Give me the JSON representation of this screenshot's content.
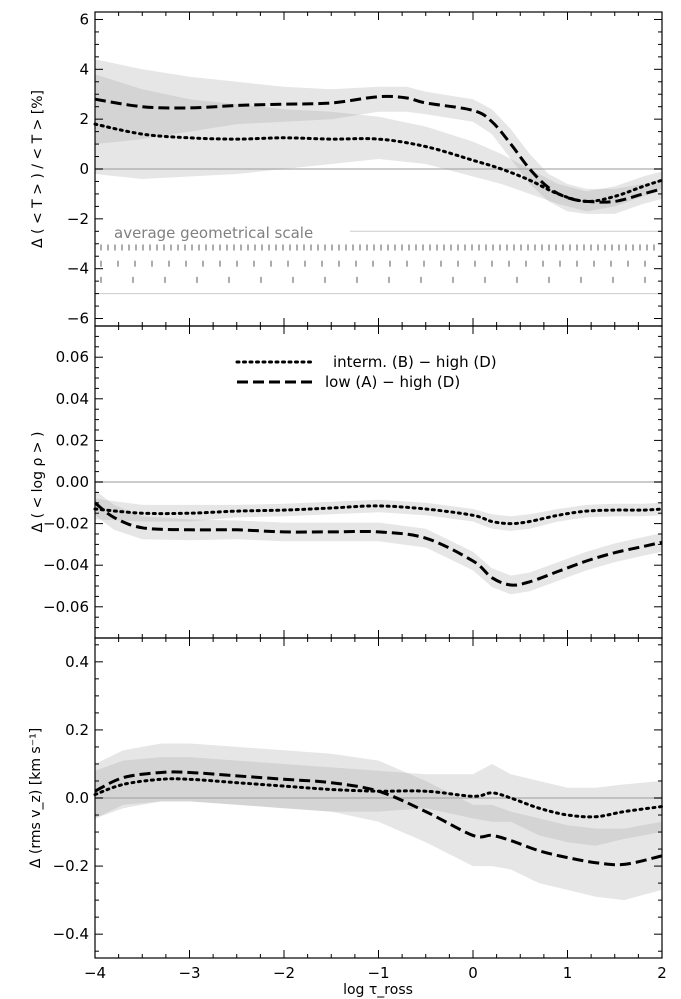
{
  "chart_data": [
    {
      "type": "line",
      "panel": "top",
      "ylabel": "Δ ( < T > ) / < T > [%]",
      "xlim": [
        -4,
        2
      ],
      "ylim": [
        -6.3,
        6.3
      ],
      "yticks": [
        "−6",
        "−4",
        "−2",
        "0",
        "2",
        "4",
        "6"
      ],
      "ytick_values": [
        -6,
        -4,
        -2,
        0,
        2,
        4,
        6
      ],
      "annotation": "average geometrical scale",
      "series": [
        {
          "style": "dotted",
          "x": [
            -4.0,
            -3.5,
            -3.0,
            -2.5,
            -2.0,
            -1.5,
            -1.0,
            -0.5,
            0.0,
            0.3,
            0.6,
            0.9,
            1.2,
            1.5,
            1.8,
            2.0
          ],
          "y": [
            1.8,
            1.4,
            1.25,
            1.2,
            1.25,
            1.2,
            1.2,
            0.9,
            0.35,
            0.0,
            -0.45,
            -1.0,
            -1.3,
            -1.1,
            -0.7,
            -0.45
          ],
          "band_upper": [
            3.8,
            3.2,
            2.8,
            2.6,
            2.4,
            2.3,
            2.1,
            1.7,
            1.1,
            0.6,
            0.0,
            -0.6,
            -0.9,
            -0.7,
            -0.3,
            -0.1
          ],
          "band_lower": [
            -0.2,
            -0.4,
            -0.3,
            -0.2,
            0.0,
            0.2,
            0.4,
            0.2,
            -0.3,
            -0.6,
            -1.0,
            -1.4,
            -1.7,
            -1.5,
            -1.1,
            -0.8
          ]
        },
        {
          "style": "dashed",
          "x": [
            -4.0,
            -3.5,
            -3.0,
            -2.5,
            -2.0,
            -1.5,
            -1.0,
            -0.7,
            -0.5,
            0.0,
            0.2,
            0.4,
            0.6,
            0.8,
            1.0,
            1.2,
            1.5,
            1.8,
            2.0
          ],
          "y": [
            2.8,
            2.5,
            2.45,
            2.55,
            2.6,
            2.65,
            2.9,
            2.85,
            2.65,
            2.35,
            1.9,
            1.0,
            0.0,
            -0.75,
            -1.15,
            -1.3,
            -1.3,
            -1.0,
            -0.8
          ],
          "band_upper": [
            4.4,
            4.0,
            3.7,
            3.5,
            3.3,
            3.2,
            3.3,
            3.3,
            3.1,
            2.8,
            2.4,
            1.6,
            0.6,
            -0.2,
            -0.6,
            -0.8,
            -0.8,
            -0.6,
            -0.4
          ],
          "band_lower": [
            1.0,
            1.2,
            1.5,
            1.8,
            1.9,
            2.0,
            2.3,
            2.3,
            2.2,
            1.9,
            1.4,
            0.4,
            -0.6,
            -1.3,
            -1.7,
            -1.8,
            -1.8,
            -1.4,
            -1.2
          ]
        }
      ]
    },
    {
      "type": "line",
      "panel": "middle",
      "ylabel": "Δ ( < log ρ > )",
      "xlim": [
        -4,
        2
      ],
      "ylim": [
        -0.075,
        0.075
      ],
      "yticks": [
        "−0.06",
        "−0.04",
        "−0.02",
        "0.00",
        "0.02",
        "0.04",
        "0.06"
      ],
      "ytick_values": [
        -0.06,
        -0.04,
        -0.02,
        0.0,
        0.02,
        0.04,
        0.06
      ],
      "legend": [
        "interm. (B) − high (D)",
        "low (A) − high (D)"
      ],
      "legend_position": "upper-center",
      "series": [
        {
          "name": "interm. (B) − high (D)",
          "style": "dotted",
          "x": [
            -4.0,
            -3.5,
            -3.0,
            -2.5,
            -2.0,
            -1.5,
            -1.0,
            -0.5,
            0.0,
            0.2,
            0.4,
            0.6,
            0.9,
            1.2,
            1.5,
            1.8,
            2.0
          ],
          "y": [
            -0.013,
            -0.015,
            -0.015,
            -0.014,
            -0.0135,
            -0.0125,
            -0.0115,
            -0.013,
            -0.016,
            -0.019,
            -0.02,
            -0.019,
            -0.016,
            -0.014,
            -0.0135,
            -0.0135,
            -0.013
          ],
          "band_upper": [
            -0.008,
            -0.011,
            -0.011,
            -0.011,
            -0.0105,
            -0.0095,
            -0.0085,
            -0.01,
            -0.013,
            -0.0155,
            -0.0165,
            -0.0155,
            -0.013,
            -0.011,
            -0.0105,
            -0.0105,
            -0.01
          ],
          "band_lower": [
            -0.018,
            -0.019,
            -0.019,
            -0.017,
            -0.0165,
            -0.0155,
            -0.0145,
            -0.016,
            -0.019,
            -0.0225,
            -0.0235,
            -0.0225,
            -0.019,
            -0.017,
            -0.0165,
            -0.0165,
            -0.016
          ]
        },
        {
          "name": "low (A) − high (D)",
          "style": "dashed",
          "x": [
            -4.0,
            -3.8,
            -3.5,
            -3.0,
            -2.5,
            -2.0,
            -1.5,
            -1.0,
            -0.5,
            0.0,
            0.2,
            0.4,
            0.6,
            0.9,
            1.2,
            1.5,
            1.8,
            2.0
          ],
          "y": [
            -0.01,
            -0.017,
            -0.022,
            -0.023,
            -0.023,
            -0.024,
            -0.024,
            -0.024,
            -0.027,
            -0.038,
            -0.046,
            -0.0495,
            -0.048,
            -0.043,
            -0.038,
            -0.034,
            -0.031,
            -0.029
          ],
          "band_upper": [
            -0.004,
            -0.011,
            -0.0165,
            -0.018,
            -0.0185,
            -0.0195,
            -0.0195,
            -0.0195,
            -0.0225,
            -0.0335,
            -0.0415,
            -0.045,
            -0.0435,
            -0.0385,
            -0.0335,
            -0.0295,
            -0.0265,
            -0.0245
          ],
          "band_lower": [
            -0.016,
            -0.023,
            -0.0275,
            -0.028,
            -0.0275,
            -0.0285,
            -0.0285,
            -0.0285,
            -0.0315,
            -0.0425,
            -0.0505,
            -0.054,
            -0.0525,
            -0.0475,
            -0.0425,
            -0.0385,
            -0.0355,
            -0.0335
          ]
        }
      ]
    },
    {
      "type": "line",
      "panel": "bottom",
      "ylabel": "Δ (rms v_z) [km s⁻¹]",
      "xlabel": "log τ_ross",
      "xlim": [
        -4,
        2
      ],
      "ylim": [
        -0.47,
        0.47
      ],
      "xticks": [
        "−4",
        "−3",
        "−2",
        "−1",
        "0",
        "1",
        "2"
      ],
      "xtick_values": [
        -4,
        -3,
        -2,
        -1,
        0,
        1,
        2
      ],
      "yticks": [
        "−0.4",
        "−0.2",
        "0.0",
        "0.2",
        "0.4"
      ],
      "ytick_values": [
        -0.4,
        -0.2,
        0.0,
        0.2,
        0.4
      ],
      "series": [
        {
          "style": "dotted",
          "x": [
            -4.0,
            -3.7,
            -3.3,
            -3.0,
            -2.5,
            -2.0,
            -1.5,
            -1.0,
            -0.5,
            0.0,
            0.2,
            0.4,
            0.7,
            1.0,
            1.3,
            1.6,
            2.0
          ],
          "y": [
            0.01,
            0.04,
            0.055,
            0.055,
            0.045,
            0.035,
            0.025,
            0.02,
            0.02,
            0.005,
            0.015,
            0.0,
            -0.03,
            -0.05,
            -0.055,
            -0.04,
            -0.025
          ],
          "band_upper": [
            0.08,
            0.11,
            0.12,
            0.12,
            0.11,
            0.1,
            0.09,
            0.08,
            0.07,
            0.07,
            0.1,
            0.07,
            0.05,
            0.03,
            0.03,
            0.04,
            0.05
          ],
          "band_lower": [
            -0.06,
            -0.03,
            -0.01,
            -0.01,
            -0.02,
            -0.03,
            -0.04,
            -0.04,
            -0.03,
            -0.06,
            -0.07,
            -0.07,
            -0.11,
            -0.13,
            -0.14,
            -0.12,
            -0.1
          ]
        },
        {
          "style": "dashed",
          "x": [
            -4.0,
            -3.7,
            -3.3,
            -3.0,
            -2.5,
            -2.0,
            -1.5,
            -1.0,
            -0.5,
            0.0,
            0.2,
            0.4,
            0.7,
            1.0,
            1.3,
            1.6,
            2.0
          ],
          "y": [
            0.02,
            0.06,
            0.075,
            0.075,
            0.065,
            0.055,
            0.045,
            0.02,
            -0.04,
            -0.11,
            -0.11,
            -0.125,
            -0.155,
            -0.175,
            -0.19,
            -0.195,
            -0.17
          ],
          "band_upper": [
            0.1,
            0.14,
            0.16,
            0.16,
            0.15,
            0.14,
            0.13,
            0.11,
            0.05,
            -0.02,
            -0.02,
            -0.04,
            -0.06,
            -0.08,
            -0.09,
            -0.09,
            -0.07
          ],
          "band_lower": [
            -0.06,
            -0.02,
            -0.01,
            -0.01,
            -0.02,
            -0.03,
            -0.04,
            -0.07,
            -0.13,
            -0.2,
            -0.2,
            -0.21,
            -0.25,
            -0.27,
            -0.29,
            -0.3,
            -0.27
          ]
        }
      ]
    }
  ]
}
